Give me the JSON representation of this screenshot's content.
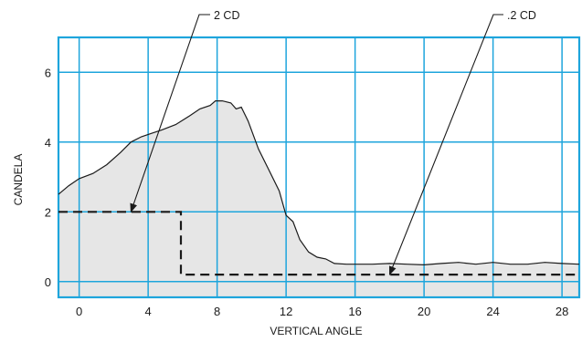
{
  "chart_data": {
    "type": "area",
    "xlabel": "VERTICAL ANGLE",
    "ylabel": "CANDELA",
    "xlim": [
      -1.2,
      29
    ],
    "ylim": [
      -0.45,
      7
    ],
    "x_ticks": [
      0,
      4,
      8,
      12,
      16,
      20,
      24,
      28
    ],
    "y_ticks": [
      0,
      2,
      4,
      6
    ],
    "grid": true,
    "colors": {
      "grid": "#1ea5dc",
      "fill": "#e6e6e6",
      "line": "#1a1a1a"
    },
    "series": [
      {
        "style": "area",
        "x": [
          -1.2,
          -0.6,
          0,
          0.8,
          1.6,
          2.4,
          3.0,
          3.6,
          4.2,
          4.8,
          5.6,
          6.4,
          7.0,
          7.6,
          7.9,
          8.3,
          8.8,
          9.1,
          9.4,
          9.8,
          10.4,
          11.0,
          11.6,
          12.0,
          12.4,
          12.8,
          13.3,
          13.8,
          14.3,
          14.8,
          15.5,
          17,
          18,
          19,
          20,
          21,
          22,
          23,
          24,
          25,
          26,
          27,
          28,
          29
        ],
        "y": [
          2.5,
          2.75,
          2.95,
          3.1,
          3.35,
          3.7,
          4.0,
          4.15,
          4.25,
          4.35,
          4.5,
          4.75,
          4.95,
          5.05,
          5.18,
          5.18,
          5.12,
          4.95,
          5.0,
          4.6,
          3.8,
          3.2,
          2.6,
          1.9,
          1.72,
          1.2,
          0.85,
          0.7,
          0.65,
          0.52,
          0.5,
          0.5,
          0.52,
          0.5,
          0.48,
          0.52,
          0.55,
          0.5,
          0.55,
          0.5,
          0.5,
          0.55,
          0.52,
          0.5
        ]
      },
      {
        "style": "dashed-step",
        "x": [
          -1.2,
          5.9,
          5.9,
          29
        ],
        "y": [
          2.0,
          2.0,
          0.2,
          0.2
        ]
      }
    ],
    "annotations": [
      {
        "text": "2 CD",
        "target": {
          "x": 3.0,
          "y": 2.0
        }
      },
      {
        "text": ".2 CD",
        "target": {
          "x": 18.0,
          "y": 0.2
        }
      }
    ]
  }
}
